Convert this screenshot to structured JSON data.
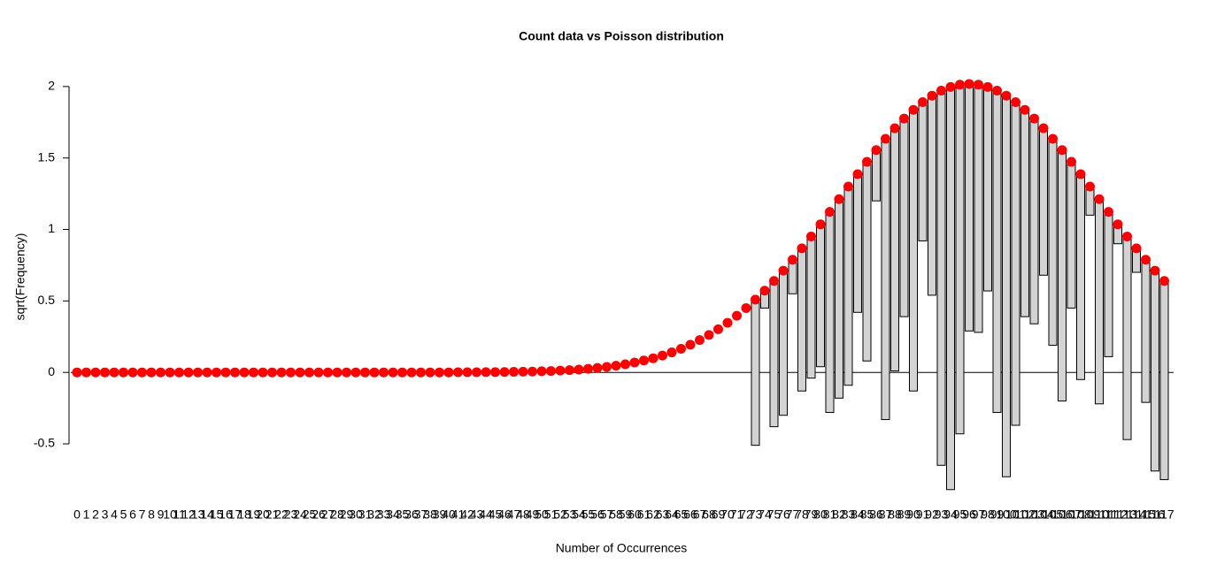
{
  "chart_data": {
    "type": "rootogram",
    "title": "Count data vs Poisson distribution",
    "x_label": "Number of Occurrences",
    "y_label": "sqrt(Frequency)",
    "categories": [
      "0",
      "1",
      "2",
      "3",
      "4",
      "5",
      "6",
      "7",
      "8",
      "9",
      "10",
      "11",
      "12",
      "13",
      "14",
      "15",
      "16",
      "17",
      "18",
      "19",
      "20",
      "21",
      "22",
      "23",
      "24",
      "25",
      "26",
      "27",
      "28",
      "29",
      "30",
      "31",
      "32",
      "33",
      "34",
      "35",
      "36",
      "37",
      "38",
      "39",
      "40",
      "41",
      "42",
      "43",
      "44",
      "45",
      "46",
      "47",
      "48",
      "49",
      "50",
      "51",
      "52",
      "53",
      "54",
      "55",
      "56",
      "57",
      "58",
      "59",
      "60",
      "61",
      "62",
      "63",
      "64",
      "65",
      "66",
      "67",
      "68",
      "69",
      "70",
      "71",
      "72",
      "73",
      "74",
      "75",
      "76",
      "77",
      "78",
      "79",
      "80",
      "81",
      "82",
      "83",
      "84",
      "85",
      "86",
      "87",
      "88",
      "89",
      "90",
      "91",
      "92",
      "93",
      "94",
      "95",
      "96",
      "97",
      "98",
      "99",
      "100",
      "101",
      "102",
      "103",
      "104",
      "105",
      "106",
      "107",
      "108",
      "109",
      "110",
      "111",
      "112",
      "113",
      "114",
      "115",
      "116",
      "117"
    ],
    "expected": [
      0,
      0,
      0,
      0,
      0,
      0,
      0,
      0,
      0,
      0,
      0,
      0,
      0,
      0,
      0,
      0,
      0,
      0,
      0,
      0,
      0,
      0,
      0,
      0,
      0,
      0,
      0,
      0,
      0,
      0,
      0,
      0,
      0,
      0,
      0,
      0,
      0,
      0,
      0,
      0,
      0,
      0.001,
      0.001,
      0.001,
      0.002,
      0.002,
      0.003,
      0.004,
      0.005,
      0.006,
      0.008,
      0.01,
      0.013,
      0.016,
      0.02,
      0.025,
      0.031,
      0.038,
      0.047,
      0.057,
      0.069,
      0.083,
      0.099,
      0.118,
      0.14,
      0.165,
      0.194,
      0.226,
      0.262,
      0.302,
      0.347,
      0.396,
      0.45,
      0.509,
      0.572,
      0.64,
      0.712,
      0.788,
      0.868,
      0.951,
      1.036,
      1.123,
      1.212,
      1.3,
      1.387,
      1.473,
      1.555,
      1.634,
      1.708,
      1.776,
      1.837,
      1.891,
      1.936,
      1.971,
      1.997,
      2.013,
      2.018,
      2.013,
      1.997,
      1.971,
      1.936,
      1.891,
      1.837,
      1.776,
      1.708,
      1.634,
      1.555,
      1.473,
      1.387,
      1.3,
      1.212,
      1.123,
      1.036,
      0.951,
      0.868,
      0.788,
      0.712,
      0.64
    ],
    "bar_bottoms": [
      null,
      null,
      null,
      null,
      null,
      null,
      null,
      null,
      null,
      null,
      null,
      null,
      null,
      null,
      null,
      null,
      null,
      null,
      null,
      null,
      null,
      null,
      null,
      null,
      null,
      null,
      null,
      null,
      null,
      null,
      null,
      null,
      null,
      null,
      null,
      null,
      null,
      null,
      null,
      null,
      null,
      null,
      null,
      null,
      null,
      null,
      null,
      null,
      null,
      null,
      null,
      null,
      null,
      null,
      null,
      null,
      null,
      null,
      null,
      null,
      null,
      null,
      null,
      null,
      null,
      null,
      null,
      null,
      null,
      null,
      null,
      null,
      null,
      -0.51,
      0.45,
      -0.38,
      -0.3,
      0.55,
      -0.13,
      -0.04,
      0.04,
      -0.28,
      -0.18,
      -0.09,
      0.42,
      0.08,
      1.2,
      -0.33,
      0.01,
      0.39,
      -0.13,
      0.92,
      0.54,
      -0.65,
      -0.82,
      -0.43,
      0.29,
      0.28,
      0.57,
      -0.28,
      -0.73,
      -0.37,
      0.39,
      0.34,
      0.68,
      0.19,
      -0.2,
      0.45,
      -0.05,
      1.1,
      -0.22,
      0.11,
      0.9,
      -0.47,
      0.7,
      -0.21,
      -0.69,
      -0.75
    ],
    "point_color": "#ff0000",
    "bar_color": "#d3d3d3",
    "ylim": [
      -0.84,
      2.03
    ],
    "yticks": [
      -0.5,
      0,
      0.5,
      1,
      1.5,
      2
    ]
  }
}
